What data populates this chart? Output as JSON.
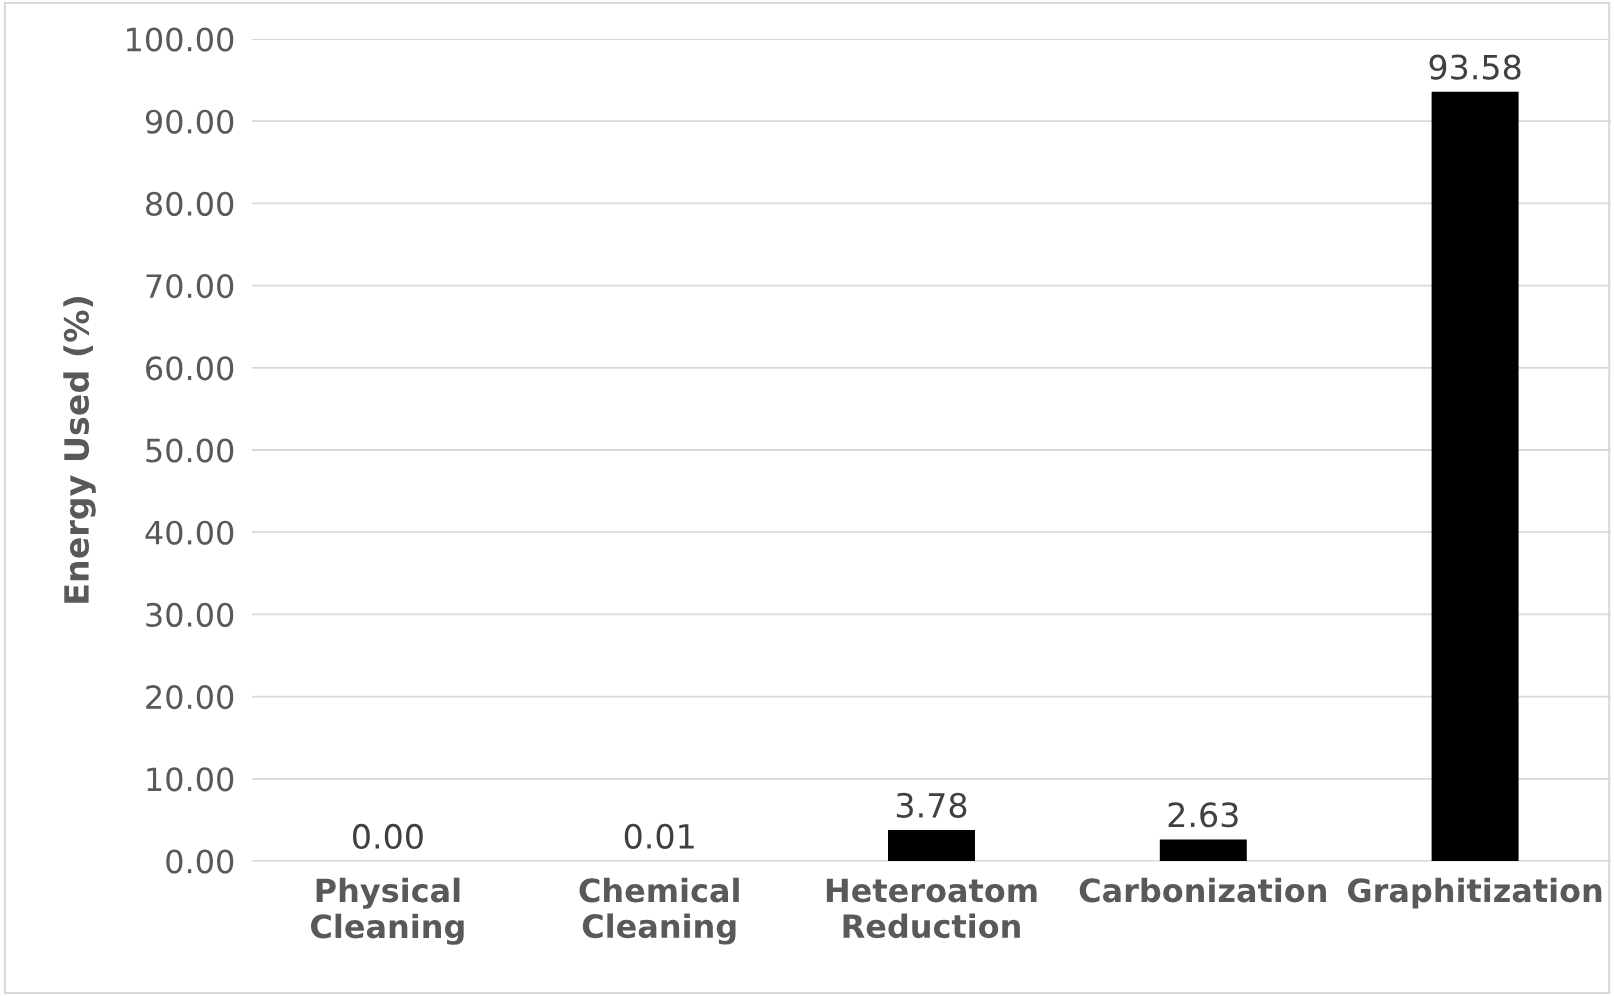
{
  "chart_data": {
    "type": "bar",
    "ylabel": "Energy Used (%)",
    "categories": [
      "Physical Cleaning",
      "Chemical Cleaning",
      "Heteroatom Reduction",
      "Carbonization",
      "Graphitization"
    ],
    "values": [
      0.0,
      0.01,
      3.78,
      2.63,
      93.58
    ],
    "color": "#000000",
    "value_labels": [
      "0.00",
      "0.01",
      "3.78",
      "2.63",
      "93.58"
    ],
    "ylim": [
      0,
      100
    ],
    "yticks": [
      {
        "value": 0,
        "label": "0.00"
      },
      {
        "value": 10,
        "label": "10.00"
      },
      {
        "value": 20,
        "label": "20.00"
      },
      {
        "value": 30,
        "label": "30.00"
      },
      {
        "value": 40,
        "label": "40.00"
      },
      {
        "value": 50,
        "label": "50.00"
      },
      {
        "value": 60,
        "label": "60.00"
      },
      {
        "value": 70,
        "label": "70.00"
      },
      {
        "value": 80,
        "label": "80.00"
      },
      {
        "value": 90,
        "label": "90.00"
      },
      {
        "value": 100,
        "label": "100.00"
      }
    ],
    "grid": "y",
    "legend": false
  }
}
